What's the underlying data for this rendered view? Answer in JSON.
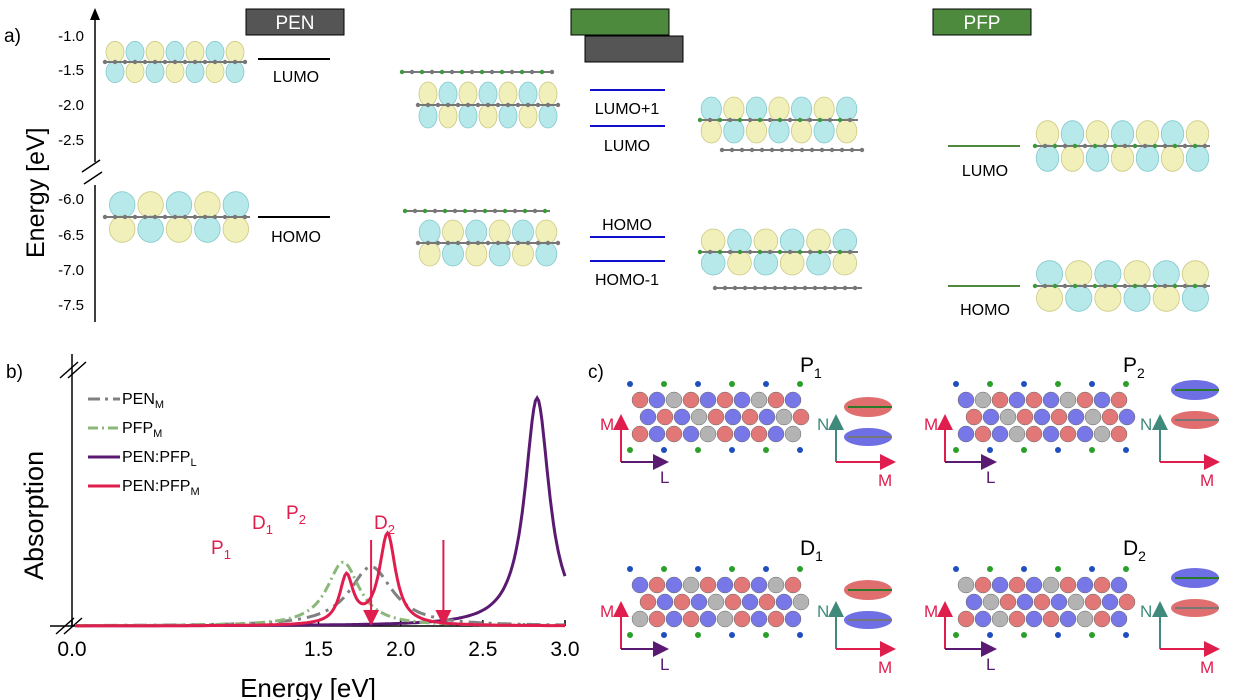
{
  "panel_a": {
    "panel_label": "a)",
    "y_axis_label": "Energy [eV]",
    "upper_ticks": [
      "-1.0",
      "-1.5",
      "-2.0",
      "-2.5"
    ],
    "lower_ticks": [
      "-6.0",
      "-6.5",
      "-7.0",
      "-7.5"
    ],
    "pen_badge": "PEN",
    "pfp_badge": "PFP",
    "pen_levels": {
      "lumo": "LUMO",
      "homo": "HOMO"
    },
    "complex_levels": {
      "lumo_plus_1": "LUMO+1",
      "lumo": "LUMO",
      "homo": "HOMO",
      "homo_minus_1": "HOMO-1"
    },
    "pfp_levels": {
      "lumo": "LUMO",
      "homo": "HOMO"
    },
    "colors": {
      "pen": "#555555",
      "pfp": "#4e8a3e",
      "complex_level": "#1010cc"
    }
  },
  "panel_b": {
    "panel_label": "b)",
    "y_axis_label": "Absorption",
    "x_axis_label": "Energy [eV]",
    "peak_labels": {
      "p1_main": "P",
      "p1_sub": "1",
      "p2_main": "P",
      "p2_sub": "2",
      "d1_main": "D",
      "d1_sub": "1",
      "d2_main": "D",
      "d2_sub": "2"
    },
    "legend": [
      {
        "main": "PEN",
        "sub": "M",
        "color": "#808080",
        "style": "dash"
      },
      {
        "main": "PFP",
        "sub": "M",
        "color": "#8bb878",
        "style": "dashdot"
      },
      {
        "main": "PEN:PFP",
        "sub": "L",
        "color": "#5a1a72",
        "style": "solid"
      },
      {
        "main": "PEN:PFP",
        "sub": "M",
        "color": "#e01e4e",
        "style": "solid"
      }
    ],
    "chart_data": {
      "type": "line",
      "xlim": [
        0.0,
        3.0
      ],
      "x_tick_labels": [
        "0.0",
        "1.5",
        "2.0",
        "2.5",
        "3.0"
      ],
      "series": [
        {
          "name": "PEN_M",
          "color": "#808080",
          "peaks": [
            {
              "x": 1.82,
              "height": 0.26,
              "width": 0.16
            }
          ]
        },
        {
          "name": "PFP_M",
          "color": "#8bb878",
          "peaks": [
            {
              "x": 1.65,
              "height": 0.28,
              "width": 0.12
            }
          ]
        },
        {
          "name": "PEN:PFP_L",
          "color": "#5a1a72",
          "peaks": [
            {
              "x": 2.83,
              "height": 1.0,
              "width": 0.09
            }
          ]
        },
        {
          "name": "PEN:PFP_M",
          "color": "#e01e4e",
          "peaks": [
            {
              "x": 1.67,
              "height": 0.21,
              "width": 0.05
            },
            {
              "x": 1.92,
              "height": 0.4,
              "width": 0.06
            }
          ]
        }
      ],
      "markers": [
        {
          "x": 1.82,
          "label": "D1"
        },
        {
          "x": 2.26,
          "label": "D2"
        }
      ]
    }
  },
  "panel_c": {
    "panel_label": "c)",
    "cells": [
      {
        "main": "P",
        "sub": "1",
        "left_axes": [
          "M",
          "L"
        ],
        "right_axes": [
          "N",
          "M"
        ]
      },
      {
        "main": "P",
        "sub": "2",
        "left_axes": [
          "M",
          "L"
        ],
        "right_axes": [
          "N",
          "M"
        ]
      },
      {
        "main": "D",
        "sub": "1",
        "left_axes": [
          "M",
          "L"
        ],
        "right_axes": [
          "N",
          "M"
        ]
      },
      {
        "main": "D",
        "sub": "2",
        "left_axes": [
          "M",
          "L"
        ],
        "right_axes": [
          "N",
          "M"
        ]
      }
    ],
    "colors": {
      "M": "#e01e4e",
      "L": "#5a1a72",
      "N": "#3f8a7a"
    }
  }
}
